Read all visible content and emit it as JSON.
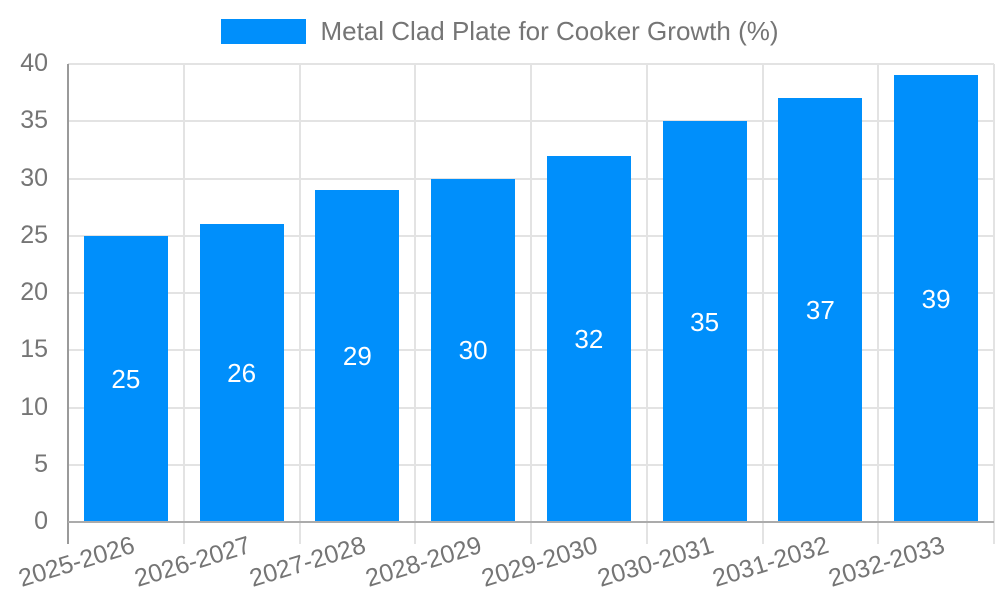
{
  "legend": {
    "label": "Metal Clad Plate for Cooker Growth (%)"
  },
  "chart_data": {
    "type": "bar",
    "title": "Metal Clad Plate for Cooker Growth (%)",
    "categories": [
      "2025-2026",
      "2026-2027",
      "2027-2028",
      "2028-2029",
      "2029-2030",
      "2030-2031",
      "2031-2032",
      "2032-2033"
    ],
    "values": [
      25,
      26,
      29,
      30,
      32,
      35,
      37,
      39
    ],
    "xlabel": "",
    "ylabel": "",
    "ylim": [
      0,
      40
    ],
    "yticks": [
      0,
      5,
      10,
      15,
      20,
      25,
      30,
      35,
      40
    ],
    "grid": true,
    "legend_position": "top-center",
    "value_label_position": "inside-center",
    "x_tick_rotation_deg": -17,
    "colors": {
      "bar": "#008FFB",
      "value_label": "#FFFFFF",
      "tick_label": "#757575",
      "gridline": "#E3E3E3",
      "axis_line_x": "#ABABAB",
      "axis_line_y": "#9A9A9A"
    }
  }
}
